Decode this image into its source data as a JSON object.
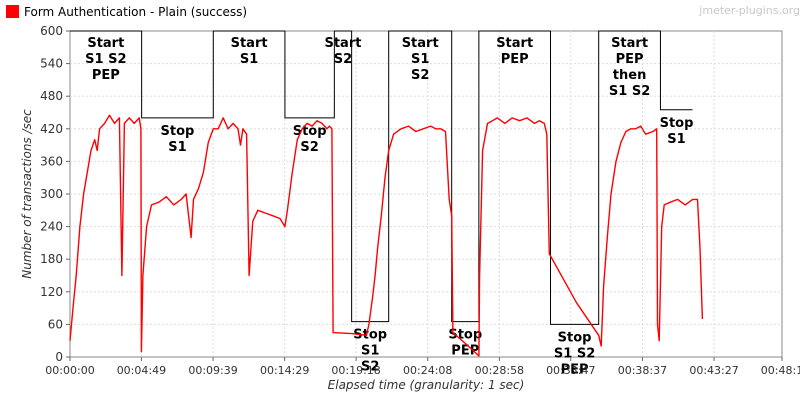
{
  "watermark": "jmeter-plugins.org",
  "chart_data": {
    "type": "line",
    "xlabel": "Elapsed time (granularity: 1 sec)",
    "ylabel": "Number of transactions /sec",
    "ylim": [
      0,
      600
    ],
    "xlim_sec": [
      0,
      2882
    ],
    "yticks": [
      0,
      60,
      120,
      180,
      240,
      300,
      360,
      420,
      480,
      540,
      600
    ],
    "xticks": [
      {
        "sec": 0,
        "label": "00:00:00"
      },
      {
        "sec": 289,
        "label": "00:04:49"
      },
      {
        "sec": 579,
        "label": "00:09:39"
      },
      {
        "sec": 869,
        "label": "00:14:29"
      },
      {
        "sec": 1158,
        "label": "00:19:18"
      },
      {
        "sec": 1448,
        "label": "00:24:08"
      },
      {
        "sec": 1738,
        "label": "00:28:58"
      },
      {
        "sec": 2027,
        "label": "00:33:47"
      },
      {
        "sec": 2317,
        "label": "00:38:37"
      },
      {
        "sec": 2607,
        "label": "00:43:27"
      },
      {
        "sec": 2882,
        "label": "00:48:1"
      }
    ],
    "legend": {
      "position": "top-left",
      "color": "#ff0000"
    },
    "series": [
      {
        "name": "Form Authentication - Plain (success)",
        "color": "#ff0000",
        "points": [
          [
            0,
            30
          ],
          [
            12,
            90
          ],
          [
            25,
            150
          ],
          [
            40,
            240
          ],
          [
            55,
            300
          ],
          [
            70,
            340
          ],
          [
            85,
            380
          ],
          [
            100,
            400
          ],
          [
            110,
            380
          ],
          [
            120,
            420
          ],
          [
            140,
            430
          ],
          [
            160,
            445
          ],
          [
            180,
            430
          ],
          [
            200,
            440
          ],
          [
            210,
            150
          ],
          [
            220,
            430
          ],
          [
            240,
            440
          ],
          [
            260,
            430
          ],
          [
            280,
            440
          ],
          [
            287,
            420
          ],
          [
            289,
            10
          ],
          [
            295,
            150
          ],
          [
            310,
            240
          ],
          [
            330,
            280
          ],
          [
            360,
            285
          ],
          [
            390,
            295
          ],
          [
            420,
            280
          ],
          [
            450,
            290
          ],
          [
            470,
            300
          ],
          [
            490,
            220
          ],
          [
            500,
            290
          ],
          [
            520,
            310
          ],
          [
            540,
            340
          ],
          [
            560,
            395
          ],
          [
            580,
            420
          ],
          [
            600,
            420
          ],
          [
            620,
            440
          ],
          [
            640,
            420
          ],
          [
            660,
            430
          ],
          [
            680,
            420
          ],
          [
            690,
            390
          ],
          [
            700,
            420
          ],
          [
            715,
            410
          ],
          [
            725,
            150
          ],
          [
            740,
            250
          ],
          [
            760,
            270
          ],
          [
            790,
            265
          ],
          [
            820,
            260
          ],
          [
            850,
            255
          ],
          [
            870,
            240
          ],
          [
            880,
            270
          ],
          [
            900,
            340
          ],
          [
            920,
            400
          ],
          [
            940,
            420
          ],
          [
            960,
            430
          ],
          [
            980,
            425
          ],
          [
            1000,
            435
          ],
          [
            1020,
            430
          ],
          [
            1040,
            420
          ],
          [
            1050,
            425
          ],
          [
            1060,
            420
          ],
          [
            1065,
            45
          ],
          [
            1140,
            43
          ],
          [
            1200,
            40
          ],
          [
            1210,
            60
          ],
          [
            1225,
            110
          ],
          [
            1235,
            150
          ],
          [
            1245,
            200
          ],
          [
            1260,
            260
          ],
          [
            1275,
            330
          ],
          [
            1290,
            380
          ],
          [
            1310,
            410
          ],
          [
            1340,
            420
          ],
          [
            1370,
            425
          ],
          [
            1400,
            415
          ],
          [
            1430,
            420
          ],
          [
            1460,
            425
          ],
          [
            1480,
            420
          ],
          [
            1500,
            420
          ],
          [
            1520,
            415
          ],
          [
            1535,
            290
          ],
          [
            1545,
            260
          ],
          [
            1550,
            45
          ],
          [
            1600,
            25
          ],
          [
            1655,
            2
          ],
          [
            1658,
            150
          ],
          [
            1670,
            380
          ],
          [
            1690,
            430
          ],
          [
            1710,
            435
          ],
          [
            1730,
            440
          ],
          [
            1760,
            430
          ],
          [
            1790,
            440
          ],
          [
            1820,
            435
          ],
          [
            1850,
            440
          ],
          [
            1880,
            430
          ],
          [
            1900,
            435
          ],
          [
            1920,
            430
          ],
          [
            1930,
            410
          ],
          [
            1940,
            190
          ],
          [
            2050,
            100
          ],
          [
            2140,
            40
          ],
          [
            2150,
            20
          ],
          [
            2160,
            130
          ],
          [
            2175,
            220
          ],
          [
            2190,
            300
          ],
          [
            2210,
            360
          ],
          [
            2230,
            395
          ],
          [
            2250,
            415
          ],
          [
            2270,
            420
          ],
          [
            2290,
            420
          ],
          [
            2310,
            425
          ],
          [
            2330,
            410
          ],
          [
            2360,
            415
          ],
          [
            2375,
            420
          ],
          [
            2378,
            60
          ],
          [
            2385,
            30
          ],
          [
            2395,
            240
          ],
          [
            2405,
            280
          ],
          [
            2430,
            285
          ],
          [
            2460,
            290
          ],
          [
            2490,
            280
          ],
          [
            2520,
            290
          ],
          [
            2540,
            290
          ],
          [
            2550,
            200
          ],
          [
            2560,
            70
          ]
        ]
      }
    ],
    "annotations": [
      {
        "x1": 0,
        "x2": 290,
        "y_top": 600,
        "y_bottom": 440,
        "label_lines": [
          "Start",
          "S1 S2",
          "PEP"
        ]
      },
      {
        "x1": 290,
        "x2": 580,
        "y_top": 440,
        "y_bottom": 440,
        "label_lines": [
          "Stop",
          "S1"
        ]
      },
      {
        "x1": 580,
        "x2": 870,
        "y_top": 600,
        "y_bottom": 440,
        "label_lines": [
          "Start",
          "S1"
        ]
      },
      {
        "x1": 870,
        "x2": 1070,
        "y_top": 440,
        "y_bottom": 440,
        "label_lines": [
          "Stop",
          "S2"
        ]
      },
      {
        "x1": 1070,
        "x2": 1140,
        "y_top": 600,
        "y_bottom": 65,
        "label_lines": [
          "Start",
          "S2"
        ]
      },
      {
        "x1": 1140,
        "x2": 1290,
        "y_top": 65,
        "y_bottom": 65,
        "label_lines": [
          "Stop",
          "S1",
          "S2"
        ]
      },
      {
        "x1": 1290,
        "x2": 1545,
        "y_top": 600,
        "y_bottom": 65,
        "label_lines": [
          "Start",
          "S1",
          "S2"
        ]
      },
      {
        "x1": 1545,
        "x2": 1655,
        "y_top": 65,
        "y_bottom": 65,
        "label_lines": [
          "Stop",
          "PEP"
        ]
      },
      {
        "x1": 1655,
        "x2": 1945,
        "y_top": 600,
        "y_bottom": 60,
        "label_lines": [
          "Start",
          "PEP"
        ]
      },
      {
        "x1": 1945,
        "x2": 2140,
        "y_top": 60,
        "y_bottom": 60,
        "label_lines": [
          "Stop",
          "S1 S2",
          "PEP"
        ]
      },
      {
        "x1": 2140,
        "x2": 2390,
        "y_top": 600,
        "y_bottom": 455,
        "label_lines": [
          "Start",
          "PEP",
          "then",
          "S1 S2"
        ]
      },
      {
        "x1": 2390,
        "x2": 2520,
        "y_top": 455,
        "y_bottom": 455,
        "label_lines": [
          "Stop",
          "S1"
        ]
      }
    ]
  }
}
